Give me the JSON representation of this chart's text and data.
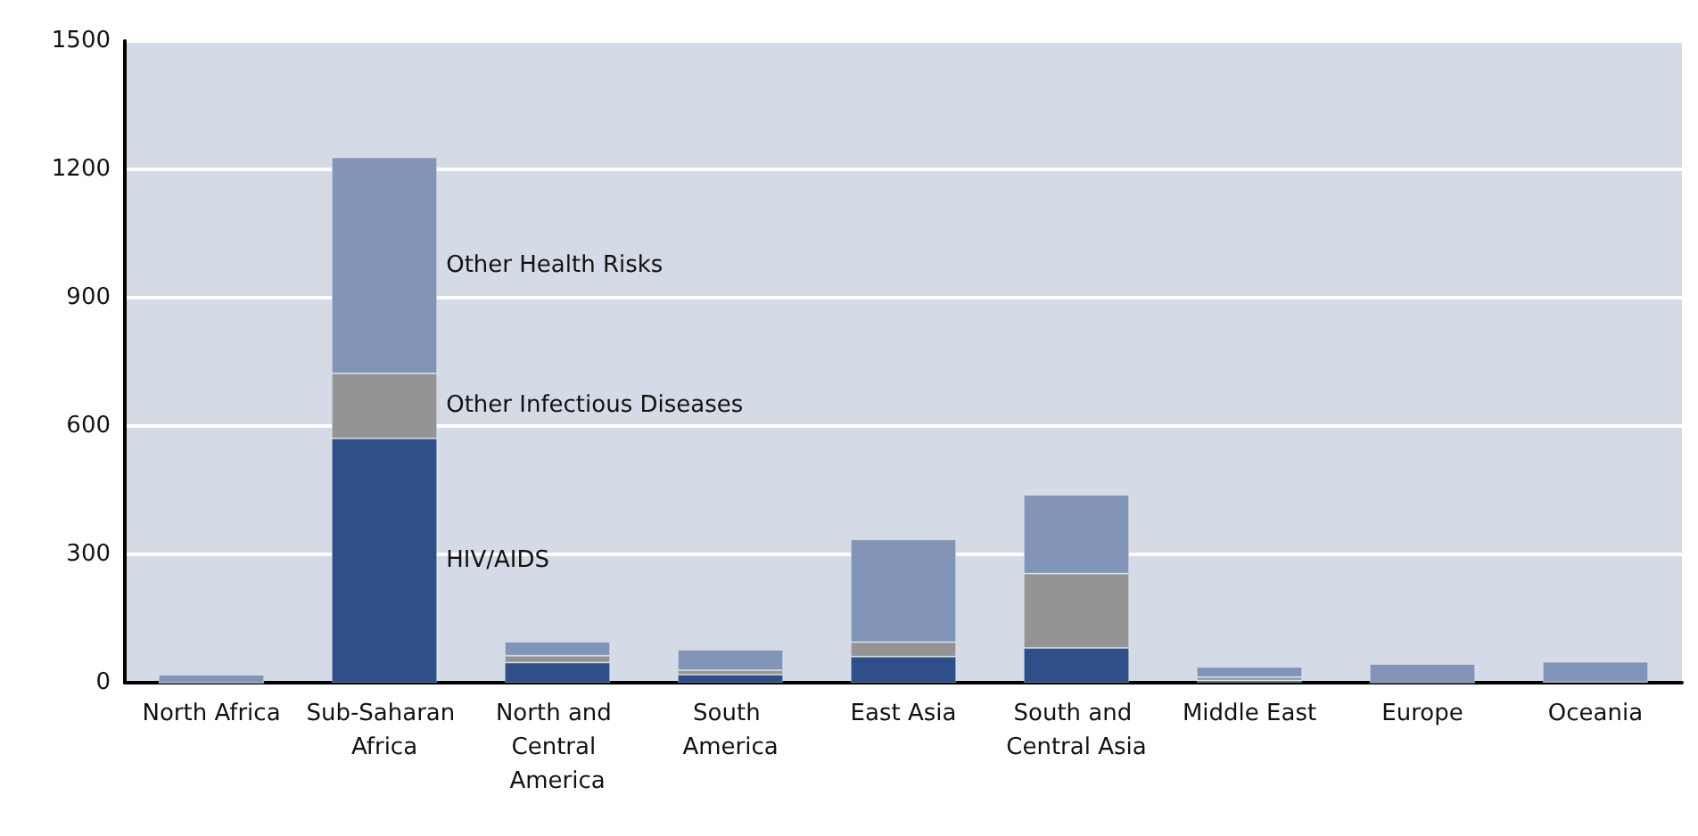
{
  "chart_data": {
    "type": "bar",
    "stacked": true,
    "categories": [
      "North Africa",
      "Sub-Saharan Africa",
      "North and Central America",
      "South America",
      "East Asia",
      "South and Central Asia",
      "Middle East",
      "Europe",
      "Oceania"
    ],
    "series": [
      {
        "name": "HIV/AIDS",
        "color": "#2e4f87",
        "values": [
          0,
          571,
          47,
          19,
          61,
          81,
          5,
          null,
          2
        ]
      },
      {
        "name": "Other Infectious Diseases",
        "color": "#949494",
        "values": [
          0,
          152,
          16,
          10,
          34,
          174,
          8,
          0,
          0
        ]
      },
      {
        "name": "Other Health Risks",
        "color": "#8295b8",
        "values": [
          19,
          505,
          33,
          48,
          240,
          184,
          24,
          44,
          47
        ]
      }
    ],
    "ylim": [
      0,
      1500
    ],
    "yticks": [
      0,
      300,
      600,
      900,
      1200,
      1500
    ],
    "grid": "y",
    "legend": false
  }
}
